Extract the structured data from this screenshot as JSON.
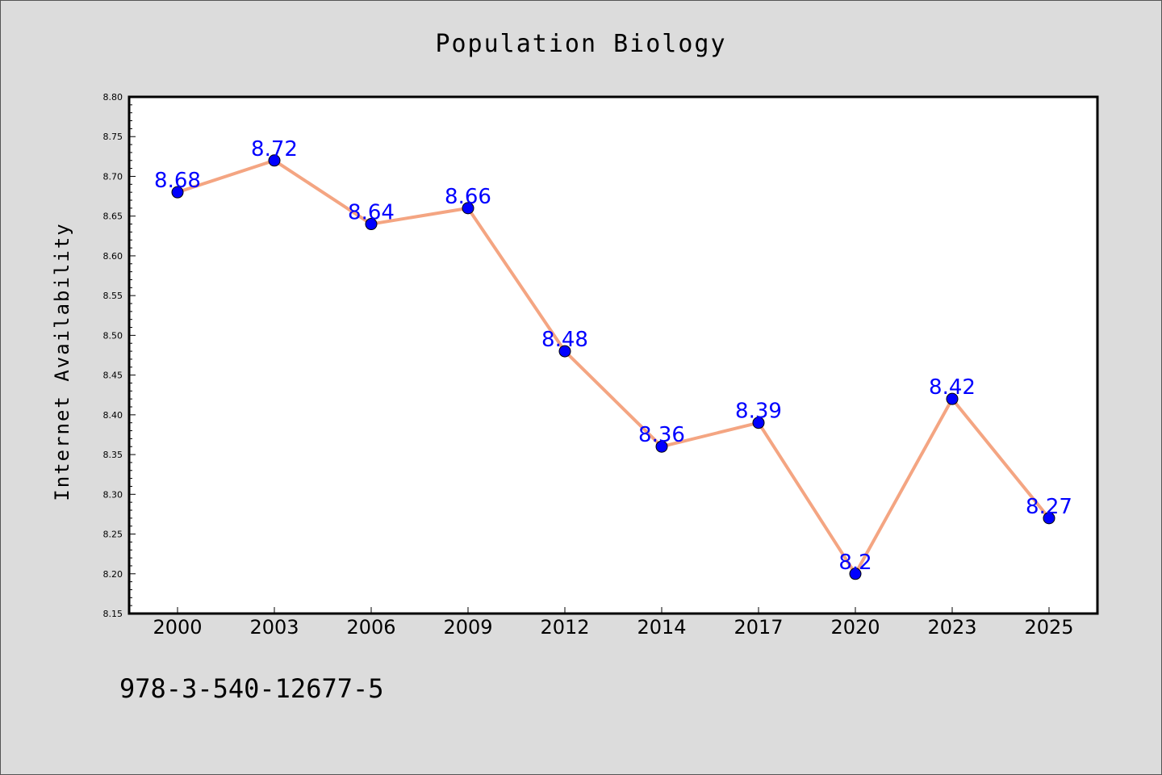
{
  "chart_data": {
    "type": "line",
    "title": "Population Biology",
    "xlabel": "",
    "ylabel": "Internet Availability",
    "categories": [
      "2000",
      "2003",
      "2006",
      "2009",
      "2012",
      "2014",
      "2017",
      "2020",
      "2023",
      "2025"
    ],
    "series": [
      {
        "values": [
          8.68,
          8.72,
          8.64,
          8.66,
          8.48,
          8.36,
          8.39,
          8.2,
          8.42,
          8.27
        ],
        "data_labels": [
          "8.68",
          "8.72",
          "8.64",
          "8.66",
          "8.48",
          "8.36",
          "8.39",
          "8.2",
          "8.42",
          "8.27"
        ],
        "line_color": "#f4a582",
        "marker_color": "#0000ff"
      }
    ],
    "ylim": [
      8.15,
      8.8
    ],
    "yticks": [
      "8.15",
      "8.20",
      "8.25",
      "8.30",
      "8.35",
      "8.40",
      "8.45",
      "8.50",
      "8.55",
      "8.60",
      "8.65",
      "8.70",
      "8.75",
      "8.80"
    ],
    "grid": false,
    "legend": "none",
    "label_color": "#0000ff",
    "background_color": "#dcdcdc",
    "plot_background": "#ffffff"
  },
  "annotation": "978-3-540-12677-5"
}
